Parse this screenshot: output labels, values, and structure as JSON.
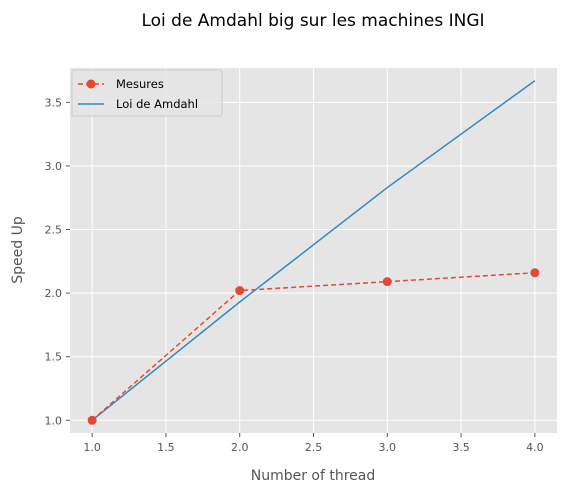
{
  "chart_data": {
    "type": "line",
    "title": "Loi de Amdahl big sur les machines INGI",
    "xlabel": "Number of thread",
    "ylabel": "Speed Up",
    "xlim": [
      0.85,
      4.15
    ],
    "ylim": [
      0.9,
      3.77
    ],
    "xticks": [
      1.0,
      1.5,
      2.0,
      2.5,
      3.0,
      3.5,
      4.0
    ],
    "xtick_labels": [
      "1.0",
      "1.5",
      "2.0",
      "2.5",
      "3.0",
      "3.5",
      "4.0"
    ],
    "yticks": [
      1.0,
      1.5,
      2.0,
      2.5,
      3.0,
      3.5
    ],
    "ytick_labels": [
      "1.0",
      "1.5",
      "2.0",
      "2.5",
      "3.0",
      "3.5"
    ],
    "grid": true,
    "legend_position": "upper left",
    "series": [
      {
        "name": "Mesures",
        "style": "dashed-marker",
        "color": "#E24A33",
        "x": [
          1,
          2,
          3,
          4
        ],
        "values": [
          1.0,
          2.02,
          2.09,
          2.16
        ]
      },
      {
        "name": "Loi de Amdahl",
        "style": "solid",
        "color": "#348ABD",
        "x": [
          1,
          2,
          3,
          4
        ],
        "values": [
          1.0,
          1.93,
          2.83,
          3.67
        ]
      }
    ]
  },
  "colors": {
    "background": "#E5E5E5",
    "grid": "#FFFFFF",
    "text": "#555555"
  }
}
